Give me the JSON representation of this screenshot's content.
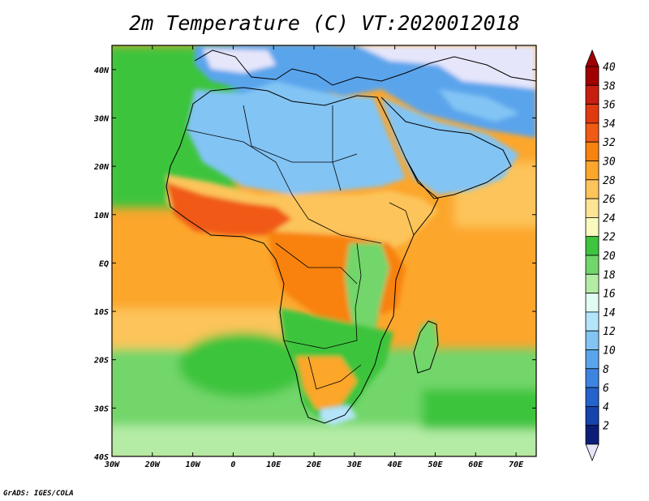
{
  "title": "2m Temperature (C) VT:2020012018",
  "credit": "GrADS: IGES/COLA",
  "map": {
    "lon_range": [
      -30,
      75
    ],
    "lat_range": [
      -40,
      45
    ],
    "x_ticks": [
      "30W",
      "20W",
      "10W",
      "0",
      "10E",
      "20E",
      "30E",
      "40E",
      "50E",
      "60E",
      "70E"
    ],
    "x_tick_values": [
      -30,
      -20,
      -10,
      0,
      10,
      20,
      30,
      40,
      50,
      60,
      70
    ],
    "y_ticks": [
      "40N",
      "30N",
      "20N",
      "10N",
      "EQ",
      "10S",
      "20S",
      "30S",
      "40S"
    ],
    "y_tick_values": [
      40,
      30,
      20,
      10,
      0,
      -10,
      -20,
      -30,
      -40
    ]
  },
  "colorbar": {
    "labels": [
      "40",
      "38",
      "36",
      "34",
      "32",
      "30",
      "28",
      "26",
      "24",
      "22",
      "20",
      "18",
      "16",
      "14",
      "12",
      "10",
      "8",
      "6",
      "4",
      "2"
    ],
    "colors": [
      "#a00000",
      "#c81e10",
      "#e03a10",
      "#f05a14",
      "#f8820e",
      "#fca62c",
      "#fcc45a",
      "#fce494",
      "#fafabe",
      "#3ec43e",
      "#72d66a",
      "#b4eca6",
      "#e0fcf4",
      "#b4e4fa",
      "#82c4f4",
      "#5aa4ec",
      "#3c84e0",
      "#2462cc",
      "#1444ac",
      "#0c1e78"
    ],
    "top_color": "#a00000",
    "bottom_color": "#e6e6fa"
  },
  "field": {
    "ocean_north_atlantic": "#3ec43e",
    "ocean_tropical": "#fca62c",
    "ocean_subtropic": "#fcc45a",
    "ocean_south": "#72d66a",
    "ocean_far_south": "#b4eca6",
    "europe": "#5aa4ec",
    "europe_cold": "#e6e6fa",
    "sahara": "#82c4f4",
    "sahel": "#fcc45a",
    "west_africa_hot": "#f05a14",
    "central": "#f8820e",
    "east_highlands": "#72d66a",
    "southern": "#3ec43e",
    "kalahari": "#fca62c",
    "cape": "#b4e4fa"
  }
}
